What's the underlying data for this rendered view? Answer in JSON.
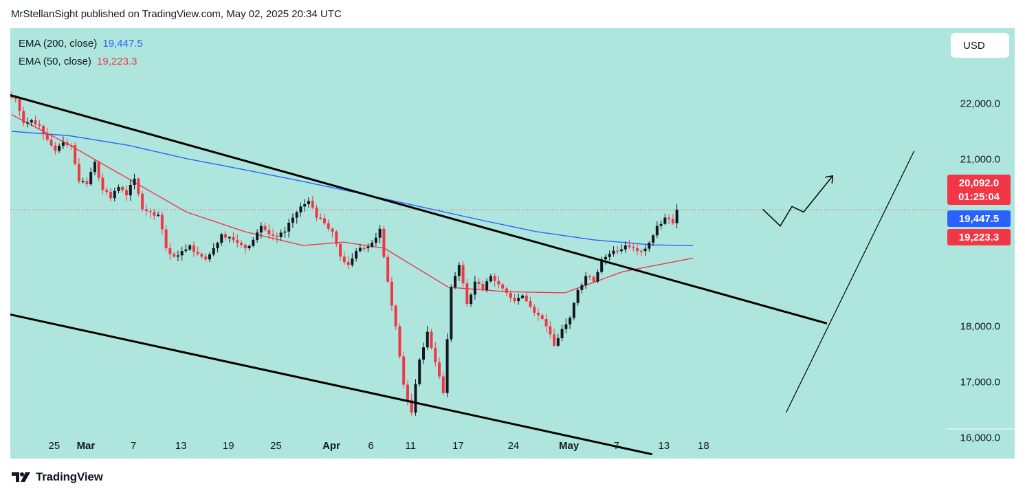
{
  "header": {
    "title": "MrStellanSight published on TradingView.com, May 02, 2025 20:34 UTC"
  },
  "footer": {
    "brand": "TradingView",
    "logo_icon": "tradingview-logo-icon"
  },
  "currency": "USD",
  "indicators": [
    {
      "label": "EMA (200, close)",
      "value": "19,447.5",
      "color": "#2962ff"
    },
    {
      "label": "EMA (50, close)",
      "value": "19,223.3",
      "color": "#f23645"
    }
  ],
  "price_tags": {
    "last": {
      "price": "20,092.0",
      "countdown": "01:25:04",
      "color": "#f23645"
    },
    "ema200": {
      "price": "19,447.5",
      "color": "#2962ff"
    },
    "ema50": {
      "price": "19,223.3",
      "color": "#f23645"
    }
  },
  "colors": {
    "background": "#aee6dd",
    "up": "#131722",
    "down": "#f23645"
  },
  "chart_data": {
    "type": "candlestick",
    "y_ticks": [
      "22,000.0",
      "21,000.0",
      "18,000.0",
      "17,000.0",
      "16,000.0"
    ],
    "y_tick_values": [
      22000,
      21000,
      18000,
      17000,
      16000
    ],
    "x_ticks": [
      {
        "label": "25",
        "date": "2025-02-25",
        "bold": false
      },
      {
        "label": "Mar",
        "date": "2025-03-01",
        "bold": true
      },
      {
        "label": "7",
        "date": "2025-03-07",
        "bold": false
      },
      {
        "label": "13",
        "date": "2025-03-13",
        "bold": false
      },
      {
        "label": "19",
        "date": "2025-03-19",
        "bold": false
      },
      {
        "label": "25",
        "date": "2025-03-25",
        "bold": false
      },
      {
        "label": "Apr",
        "date": "2025-04-01",
        "bold": true
      },
      {
        "label": "6",
        "date": "2025-04-06",
        "bold": false
      },
      {
        "label": "11",
        "date": "2025-04-11",
        "bold": false
      },
      {
        "label": "17",
        "date": "2025-04-17",
        "bold": false
      },
      {
        "label": "24",
        "date": "2025-04-24",
        "bold": false
      },
      {
        "label": "May",
        "date": "2025-05-01",
        "bold": true
      },
      {
        "label": "7",
        "date": "2025-05-07",
        "bold": false
      },
      {
        "label": "13",
        "date": "2025-05-13",
        "bold": false
      },
      {
        "label": "18",
        "date": "2025-05-18",
        "bold": false
      }
    ],
    "last_price": 20092,
    "series": [
      {
        "name": "price",
        "points": [
          [
            "2025-02-20",
            22080
          ],
          [
            "2025-02-21",
            21650
          ],
          [
            "2025-02-22",
            21700
          ],
          [
            "2025-02-23",
            21600
          ],
          [
            "2025-02-24",
            21350
          ],
          [
            "2025-02-25",
            21150
          ],
          [
            "2025-02-26",
            21300
          ],
          [
            "2025-02-27",
            21250
          ],
          [
            "2025-02-28",
            20600
          ],
          [
            "2025-03-01",
            20550
          ],
          [
            "2025-03-02",
            20950
          ],
          [
            "2025-03-03",
            20450
          ],
          [
            "2025-03-04",
            20300
          ],
          [
            "2025-03-05",
            20500
          ],
          [
            "2025-03-06",
            20350
          ],
          [
            "2025-03-07",
            20650
          ],
          [
            "2025-03-08",
            20100
          ],
          [
            "2025-03-09",
            20050
          ],
          [
            "2025-03-10",
            20000
          ],
          [
            "2025-03-11",
            19400
          ],
          [
            "2025-03-12",
            19250
          ],
          [
            "2025-03-13",
            19350
          ],
          [
            "2025-03-14",
            19450
          ],
          [
            "2025-03-15",
            19300
          ],
          [
            "2025-03-16",
            19200
          ],
          [
            "2025-03-17",
            19400
          ],
          [
            "2025-03-18",
            19650
          ],
          [
            "2025-03-19",
            19600
          ],
          [
            "2025-03-20",
            19500
          ],
          [
            "2025-03-21",
            19400
          ],
          [
            "2025-03-22",
            19550
          ],
          [
            "2025-03-23",
            19800
          ],
          [
            "2025-03-24",
            19650
          ],
          [
            "2025-03-25",
            19600
          ],
          [
            "2025-03-26",
            19700
          ],
          [
            "2025-03-27",
            19950
          ],
          [
            "2025-03-28",
            20150
          ],
          [
            "2025-03-29",
            20250
          ],
          [
            "2025-03-30",
            19950
          ],
          [
            "2025-03-31",
            19850
          ],
          [
            "2025-04-01",
            19700
          ],
          [
            "2025-04-02",
            19250
          ],
          [
            "2025-04-03",
            19100
          ],
          [
            "2025-04-04",
            19350
          ],
          [
            "2025-04-05",
            19400
          ],
          [
            "2025-04-06",
            19500
          ],
          [
            "2025-04-07",
            19750
          ],
          [
            "2025-04-08",
            18800
          ],
          [
            "2025-04-09",
            18000
          ],
          [
            "2025-04-10",
            16950
          ],
          [
            "2025-04-11",
            16450
          ],
          [
            "2025-04-12",
            17400
          ],
          [
            "2025-04-13",
            17900
          ],
          [
            "2025-04-14",
            17350
          ],
          [
            "2025-04-15",
            16800
          ],
          [
            "2025-04-16",
            18700
          ],
          [
            "2025-04-17",
            19100
          ],
          [
            "2025-04-18",
            18400
          ],
          [
            "2025-04-19",
            18800
          ],
          [
            "2025-04-20",
            18650
          ],
          [
            "2025-04-21",
            18900
          ],
          [
            "2025-04-22",
            18750
          ],
          [
            "2025-04-23",
            18600
          ],
          [
            "2025-04-24",
            18450
          ],
          [
            "2025-04-25",
            18550
          ],
          [
            "2025-04-26",
            18350
          ],
          [
            "2025-04-27",
            18200
          ],
          [
            "2025-04-28",
            18000
          ],
          [
            "2025-04-29",
            17650
          ],
          [
            "2025-04-30",
            17950
          ],
          [
            "2025-05-01",
            18150
          ],
          [
            "2025-05-02",
            18650
          ],
          [
            "2025-05-03",
            18900
          ],
          [
            "2025-05-04",
            18800
          ],
          [
            "2025-05-05",
            19200
          ],
          [
            "2025-05-06",
            19300
          ],
          [
            "2025-05-07",
            19350
          ],
          [
            "2025-05-08",
            19450
          ],
          [
            "2025-05-09",
            19400
          ],
          [
            "2025-05-10",
            19350
          ],
          [
            "2025-05-11",
            19500
          ],
          [
            "2025-05-12",
            19800
          ],
          [
            "2025-05-13",
            19950
          ],
          [
            "2025-05-14",
            19850
          ],
          [
            "2025-05-15",
            20092
          ]
        ]
      }
    ],
    "ema_200": [
      [
        0,
        21500
      ],
      [
        10,
        21420
      ],
      [
        20,
        21250
      ],
      [
        30,
        21010
      ],
      [
        40,
        20810
      ],
      [
        50,
        20600
      ],
      [
        60,
        20380
      ],
      [
        70,
        20150
      ],
      [
        80,
        19920
      ],
      [
        90,
        19700
      ],
      [
        100,
        19550
      ],
      [
        110,
        19460
      ],
      [
        117,
        19447.5
      ]
    ],
    "ema_50": [
      [
        0,
        21800
      ],
      [
        10,
        21250
      ],
      [
        20,
        20650
      ],
      [
        30,
        20050
      ],
      [
        40,
        19700
      ],
      [
        50,
        19450
      ],
      [
        57,
        19510
      ],
      [
        64,
        19400
      ],
      [
        75,
        18700
      ],
      [
        85,
        18620
      ],
      [
        95,
        18600
      ],
      [
        105,
        18980
      ],
      [
        117,
        19223.3
      ]
    ],
    "annotations": {
      "trendline_upper": [
        [
          -2,
          22200
        ],
        [
          140,
          18050
        ]
      ],
      "trendline_lower": [
        [
          -2,
          18250
        ],
        [
          110,
          15700
        ]
      ],
      "steep_line": [
        [
          133,
          16450
        ],
        [
          155,
          21150
        ]
      ],
      "zigzag_arrow": [
        [
          129,
          20100
        ],
        [
          132,
          19800
        ],
        [
          134,
          20150
        ],
        [
          136,
          20050
        ],
        [
          141,
          20700
        ]
      ]
    }
  }
}
